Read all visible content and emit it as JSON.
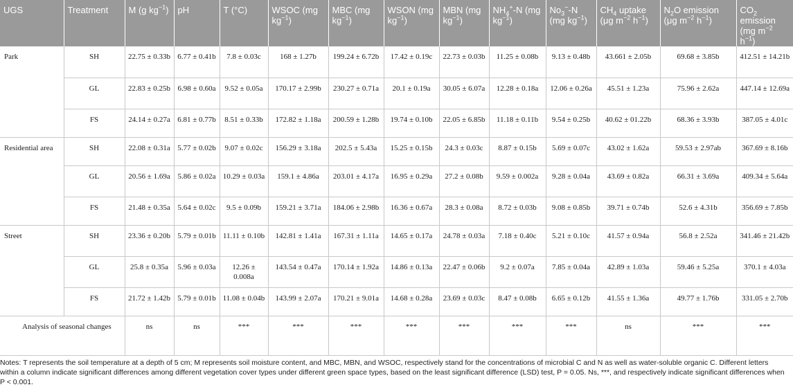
{
  "table": {
    "headers": [
      {
        "html": "UGS"
      },
      {
        "html": "Treatment"
      },
      {
        "html": "M (g kg<sup>−1</sup>)"
      },
      {
        "html": "pH"
      },
      {
        "html": "T (°C)"
      },
      {
        "html": "WSOC (mg kg<sup>−1</sup>)"
      },
      {
        "html": "MBC (mg kg<sup>−1</sup>)"
      },
      {
        "html": "WSON (mg kg<sup>−1</sup>)"
      },
      {
        "html": "MBN (mg kg<sup>−1</sup>)"
      },
      {
        "html": "NH<sub>4</sub><sup>+</sup>-N (mg kg<sup>−1</sup>)"
      },
      {
        "html": "No<sub>3</sub><sup>−</sup>-N (mg kg<sup>−1</sup>)"
      },
      {
        "html": "CH<sub>4</sub> uptake (μg m<sup>−2</sup> h<sup>−1</sup>)"
      },
      {
        "html": "N<sub>2</sub>O emission (μg m<sup>−2</sup> h<sup>−1</sup>)"
      },
      {
        "html": "CO<sub>2</sub> emission (mg m<sup>−2</sup> h<sup>−1</sup>)"
      }
    ],
    "groups": [
      {
        "ugs": "Park",
        "rows": [
          {
            "treatment": "SH",
            "values": [
              "22.75 ± 0.33b",
              "6.77 ± 0.41b",
              "7.8 ± 0.03c",
              "168 ± 1.27b",
              "199.24 ± 6.72b",
              "17.42 ± 0.19c",
              "22.73 ± 0.03b",
              "11.25 ± 0.08b",
              "9.13 ± 0.48b",
              "43.661 ± 2.05b",
              "69.68 ± 3.85b",
              "412.51 ± 14.21b"
            ]
          },
          {
            "treatment": "GL",
            "values": [
              "22.83 ± 0.25b",
              "6.98 ± 0.60a",
              "9.52 ± 0.05a",
              "170.17 ± 2.99b",
              "230.27 ± 0.71a",
              "20.1 ± 0.19a",
              "30.05 ± 6.07a",
              "12.28 ± 0.18a",
              "12.06 ± 0.26a",
              "45.51 ± 1.23a",
              "75.96 ± 2.62a",
              "447.14 ± 12.69a"
            ]
          },
          {
            "treatment": "FS",
            "values": [
              "24.14 ± 0.27a",
              "6.81 ± 0.77b",
              "8.51 ± 0.33b",
              "172.82 ± 1.18a",
              "200.59 ± 1.28b",
              "19.74 ± 0.10b",
              "22.05 ± 6.85b",
              "11.18 ± 0.11b",
              "9.54 ± 0.25b",
              "40.62 ± 01.22b",
              "68.36 ± 3.93b",
              "387.05 ± 4.01c"
            ]
          }
        ]
      },
      {
        "ugs": "Residential area",
        "rows": [
          {
            "treatment": "SH",
            "values": [
              "22.08 ± 0.31a",
              "5.77 ± 0.02b",
              "9.07 ± 0.02c",
              "156.29 ± 3.18a",
              "202.5 ± 5.43a",
              "15.25 ± 0.15b",
              "24.3 ± 0.03c",
              "8.87 ± 0.15b",
              "5.69 ± 0.07c",
              "43.02 ± 1.62a",
              "59.53 ± 2.97ab",
              "367.69 ± 8.16b"
            ]
          },
          {
            "treatment": "GL",
            "values": [
              "20.56 ± 1.69a",
              "5.86 ± 0.02a",
              "10.29 ± 0.03a",
              "159.1 ± 4.86a",
              "203.01 ± 4.17a",
              "16.95 ± 0.29a",
              "27.2 ± 0.08b",
              "9.59 ± 0.002a",
              "9.28 ± 0.04a",
              "43.69 ± 0.82a",
              "66.31 ± 3.69a",
              "409.34 ± 5.64a"
            ]
          },
          {
            "treatment": "FS",
            "values": [
              "21.48 ± 0.35a",
              "5.64 ± 0.02c",
              "9.5 ± 0.09b",
              "159.21 ± 3.71a",
              "184.06 ± 2.98b",
              "16.36 ± 0.67a",
              "28.3 ± 0.08a",
              "8.72 ± 0.03b",
              "9.08 ± 0.85b",
              "39.71 ± 0.74b",
              "52.6 ± 4.31b",
              "356.69 ± 7.85b"
            ]
          }
        ]
      },
      {
        "ugs": "Street",
        "rows": [
          {
            "treatment": "SH",
            "values": [
              "23.36 ± 0.20b",
              "5.79 ± 0.01b",
              "11.11 ± 0.10b",
              "142.81 ± 1.41a",
              "167.31 ± 1.11a",
              "14.65 ± 0.17a",
              "24.78 ± 0.03a",
              "7.18 ± 0.40c",
              "5.21 ± 0.10c",
              "41.57 ± 0.94a",
              "56.8 ± 2.52a",
              "341.46 ± 21.42b"
            ]
          },
          {
            "treatment": "GL",
            "values": [
              "25.8 ± 0.35a",
              "5.96 ± 0.03a",
              "12.26 ± 0.008a",
              "143.54 ± 0.47a",
              "170.14 ± 1.92a",
              "14.86 ± 0.13a",
              "22.47 ± 0.06b",
              "9.2 ± 0.07a",
              "7.85 ± 0.04a",
              "42.89 ± 1.03a",
              "59.46 ± 5.25a",
              "370.1 ± 4.03a"
            ]
          },
          {
            "treatment": "FS",
            "values": [
              "21.72 ± 1.42b",
              "5.79 ± 0.01b",
              "11.08 ± 0.04b",
              "143.99 ± 2.07a",
              "170.21 ± 9.01a",
              "14.68 ± 0.28a",
              "23.69 ± 0.03c",
              "8.47 ± 0.08b",
              "6.65 ± 0.12b",
              "41.55 ± 1.36a",
              "49.77 ± 1.76b",
              "331.05 ± 2.70b"
            ]
          }
        ]
      }
    ],
    "analysis": {
      "label": "Analysis of seasonal changes",
      "values": [
        "ns",
        "ns",
        "***",
        "***",
        "***",
        "***",
        "***",
        "***",
        "***",
        "ns",
        "***",
        "***"
      ]
    }
  },
  "notes": "Notes: T represents the soil temperature at a depth of 5 cm; M represents soil moisture content, and MBC, MBN, and WSOC, respectively stand for the concentrations of microbial C and N as well as water-soluble organic C. Different letters within a column indicate significant differences among different vegetation cover types under different green space types, based on the least significant difference (LSD) test, P = 0.05. Ns, ***, and respectively indicate significant differences when P < 0.001."
}
